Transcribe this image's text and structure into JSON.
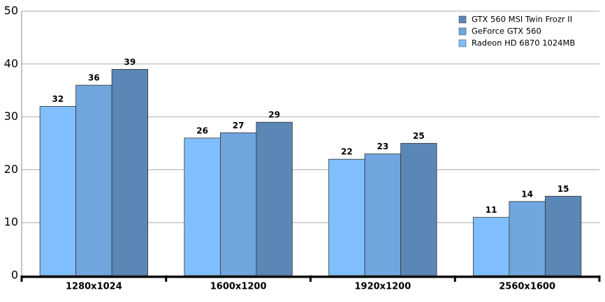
{
  "chart_data": {
    "type": "bar",
    "categories": [
      "1280x1024",
      "1600x1200",
      "1920x1200",
      "2560x1600"
    ],
    "series": [
      {
        "name": "GTX 560 MSI Twin Frozr II",
        "color": "#5b87b6",
        "values": [
          39,
          29,
          25,
          15
        ]
      },
      {
        "name": "GeForce GTX 560",
        "color": "#70a5de",
        "values": [
          36,
          27,
          23,
          14
        ]
      },
      {
        "name": "Radeon HD 6870 1024MB",
        "color": "#80bfff",
        "values": [
          32,
          26,
          22,
          11
        ]
      }
    ],
    "ylim": [
      0,
      50
    ],
    "yticks": [
      0,
      10,
      20,
      30,
      40,
      50
    ],
    "grid": true,
    "legend": "top-right"
  }
}
